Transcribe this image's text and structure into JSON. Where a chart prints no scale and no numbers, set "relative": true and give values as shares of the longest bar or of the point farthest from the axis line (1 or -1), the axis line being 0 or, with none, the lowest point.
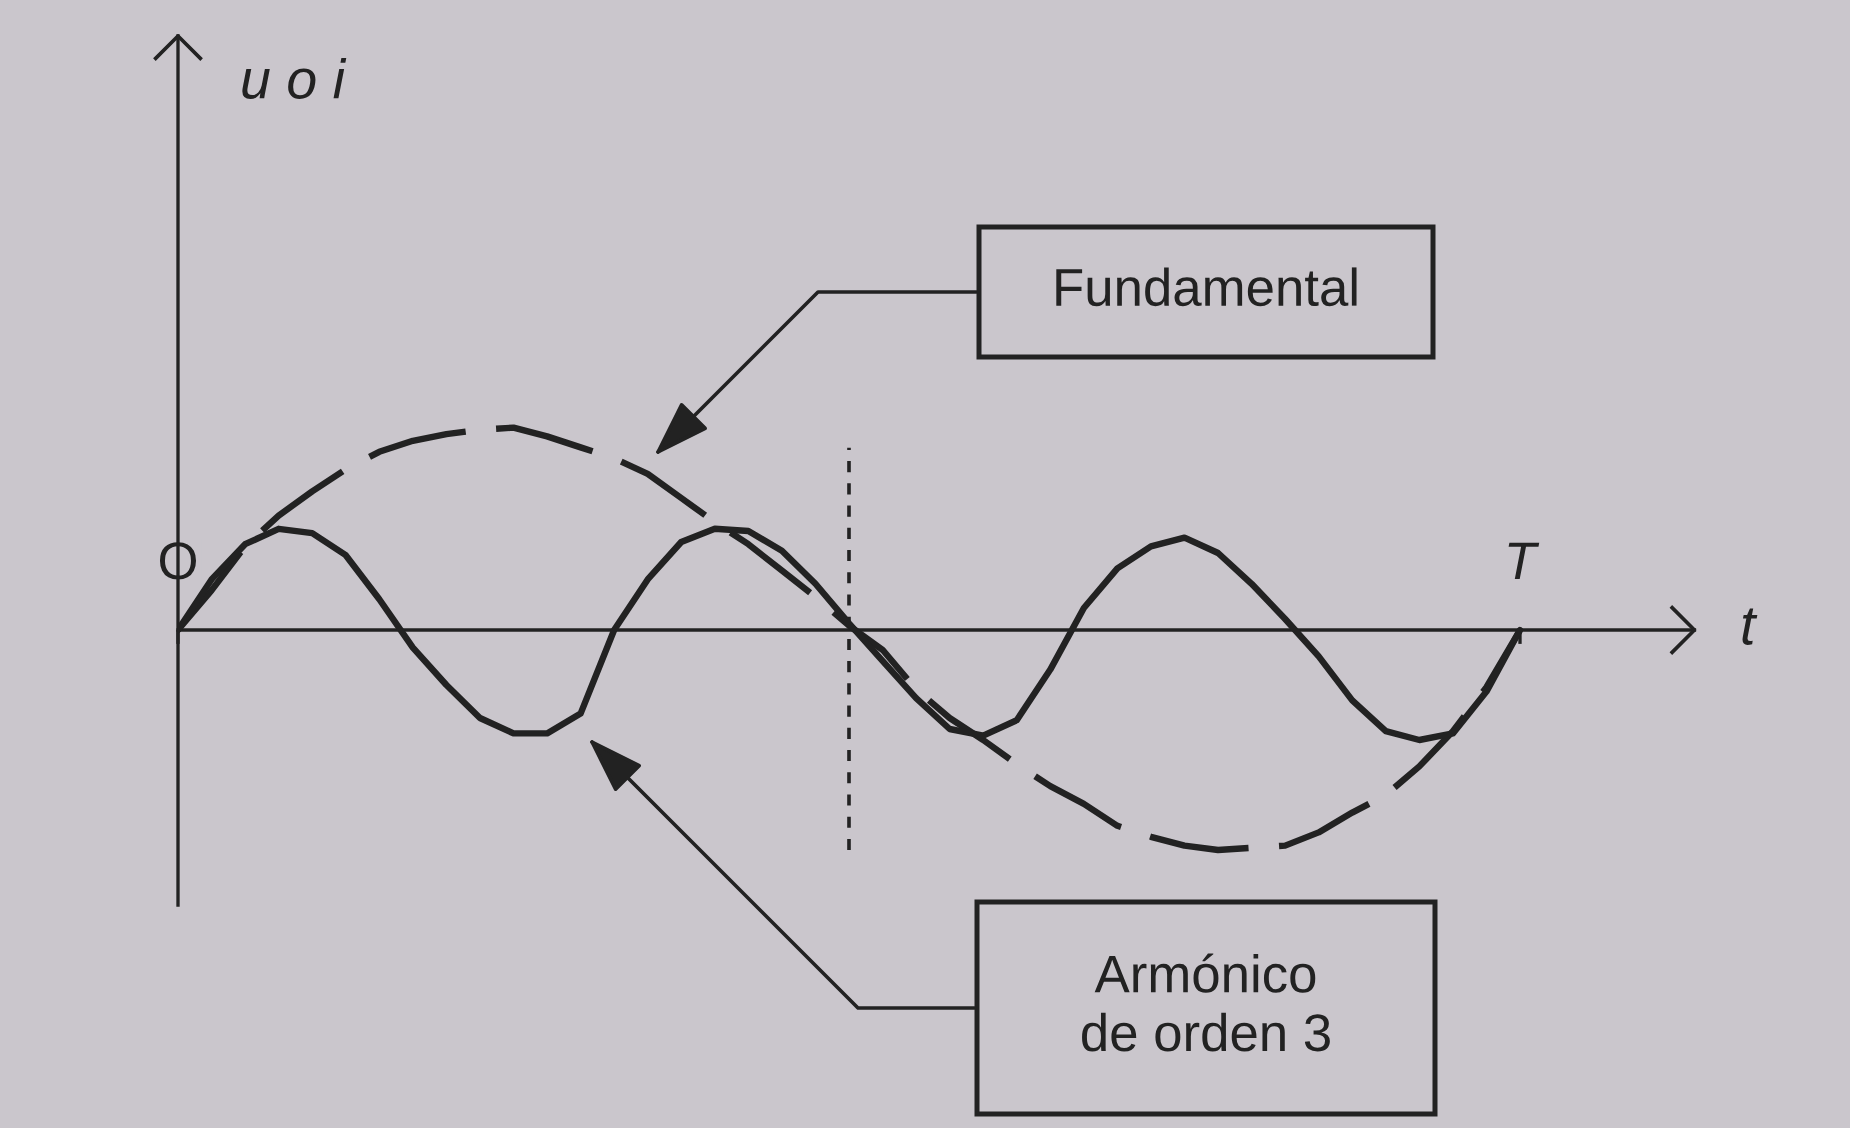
{
  "chart_data": {
    "type": "line",
    "relative": true,
    "xlabel": "t",
    "categories": [
      "O",
      null,
      null,
      null,
      null,
      null,
      null,
      null,
      null,
      null,
      null,
      null,
      null,
      null,
      null,
      null,
      null,
      null,
      null,
      null,
      null,
      null,
      null,
      null,
      null,
      null,
      null,
      null,
      null,
      null,
      null,
      null,
      null,
      null,
      null,
      null,
      null,
      null,
      null,
      null,
      "T"
    ],
    "series": [
      {
        "color": "#222222",
        "line_style": "dashed",
        "values": [
          0,
          0.18,
          0.38,
          0.52,
          0.63,
          0.73,
          0.81,
          0.86,
          0.89,
          0.91,
          0.92,
          0.88,
          0.83,
          0.78,
          0.71,
          0.6,
          0.49,
          0.39,
          0.27,
          0.15,
          0.02,
          -0.09,
          -0.27,
          -0.4,
          -0.5,
          -0.61,
          -0.71,
          -0.79,
          -0.89,
          -0.94,
          -0.98,
          -1,
          -0.99,
          -0.98,
          -0.92,
          -0.83,
          -0.75,
          -0.62,
          -0.46,
          -0.26,
          0
        ]
      },
      {
        "color": "#222222",
        "line_style": "solid",
        "values": [
          0,
          0.23,
          0.39,
          0.46,
          0.44,
          0.34,
          0.14,
          -0.08,
          -0.25,
          -0.4,
          -0.47,
          -0.47,
          -0.38,
          0,
          0.23,
          0.4,
          0.46,
          0.45,
          0.36,
          0.21,
          0.03,
          -0.14,
          -0.31,
          -0.45,
          -0.48,
          -0.41,
          -0.18,
          0.1,
          0.28,
          0.38,
          0.42,
          0.35,
          0.21,
          0.05,
          -0.12,
          -0.32,
          -0.46,
          -0.5,
          -0.47,
          -0.28,
          0
        ]
      }
    ],
    "annotations": [
      "u o i",
      "Fundamental",
      "Armónico\nde orden 3"
    ]
  }
}
